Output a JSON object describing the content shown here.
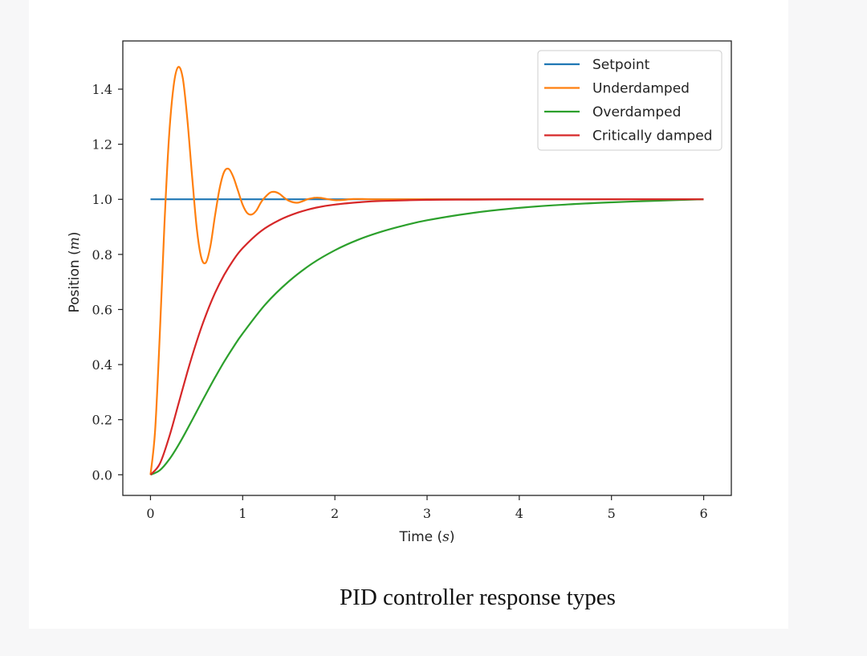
{
  "caption": "PID controller response types",
  "chart_data": {
    "type": "line",
    "xlabel": "Time (s)",
    "ylabel": "Position (m)",
    "xlim": [
      -0.3,
      6.3
    ],
    "ylim": [
      -0.075,
      1.575
    ],
    "xticks": [
      0,
      1,
      2,
      3,
      4,
      5,
      6
    ],
    "yticks": [
      0.0,
      0.2,
      0.4,
      0.6,
      0.8,
      1.0,
      1.2,
      1.4
    ],
    "ytick_labels": [
      "0.0",
      "0.2",
      "0.4",
      "0.6",
      "0.8",
      "1.0",
      "1.2",
      "1.4"
    ],
    "grid": false,
    "legend_position": "top-right",
    "series": [
      {
        "name": "Setpoint",
        "color": "#1f77b4",
        "x": [
          0,
          6
        ],
        "y": [
          1.0,
          1.0
        ]
      },
      {
        "name": "Underdamped",
        "color": "#ff7f0e",
        "x": [
          0,
          0.05,
          0.1,
          0.15,
          0.2,
          0.25,
          0.3,
          0.35,
          0.4,
          0.45,
          0.5,
          0.55,
          0.6,
          0.65,
          0.7,
          0.75,
          0.8,
          0.85,
          0.9,
          0.95,
          1.0,
          1.05,
          1.1,
          1.15,
          1.2,
          1.25,
          1.3,
          1.35,
          1.4,
          1.45,
          1.5,
          1.55,
          1.6,
          1.65,
          1.7,
          1.75,
          1.8,
          1.85,
          1.9,
          1.95,
          2.0,
          2.05,
          2.1,
          2.15,
          2.2,
          2.3,
          2.4,
          2.5,
          2.7,
          3.0,
          4.0,
          5.0,
          6.0
        ],
        "y": [
          0.0,
          0.16,
          0.5,
          0.9,
          1.22,
          1.41,
          1.48,
          1.44,
          1.29,
          1.09,
          0.9,
          0.79,
          0.77,
          0.83,
          0.94,
          1.04,
          1.1,
          1.11,
          1.08,
          1.03,
          0.98,
          0.95,
          0.945,
          0.96,
          0.99,
          1.01,
          1.025,
          1.027,
          1.02,
          1.006,
          0.995,
          0.989,
          0.988,
          0.993,
          1.0,
          1.004,
          1.006,
          1.005,
          1.002,
          0.999,
          0.997,
          0.997,
          0.998,
          1.0,
          1.001,
          1.001,
          1.0,
          1.0,
          1.0,
          1.0,
          1.0,
          1.0,
          1.0
        ]
      },
      {
        "name": "Overdamped",
        "color": "#2ca02c",
        "x": [
          0,
          0.1,
          0.2,
          0.3,
          0.4,
          0.5,
          0.6,
          0.7,
          0.8,
          0.9,
          1.0,
          1.25,
          1.5,
          1.75,
          2.0,
          2.25,
          2.5,
          2.75,
          3.0,
          3.5,
          4.0,
          4.5,
          5.0,
          5.5,
          6.0
        ],
        "y": [
          0.0,
          0.016,
          0.054,
          0.106,
          0.166,
          0.229,
          0.292,
          0.353,
          0.411,
          0.464,
          0.513,
          0.62,
          0.702,
          0.766,
          0.815,
          0.853,
          0.882,
          0.905,
          0.924,
          0.951,
          0.969,
          0.981,
          0.989,
          0.995,
          1.0
        ]
      },
      {
        "name": "Critically damped",
        "color": "#d62728",
        "x": [
          0,
          0.1,
          0.2,
          0.3,
          0.4,
          0.5,
          0.6,
          0.7,
          0.8,
          0.9,
          1.0,
          1.2,
          1.4,
          1.6,
          1.8,
          2.0,
          2.25,
          2.5,
          3.0,
          3.5,
          4.0,
          5.0,
          6.0
        ],
        "y": [
          0.0,
          0.039,
          0.134,
          0.253,
          0.373,
          0.483,
          0.579,
          0.66,
          0.726,
          0.78,
          0.823,
          0.885,
          0.925,
          0.952,
          0.97,
          0.981,
          0.989,
          0.994,
          0.998,
          0.999,
          1.0,
          1.0,
          1.0
        ]
      }
    ]
  }
}
